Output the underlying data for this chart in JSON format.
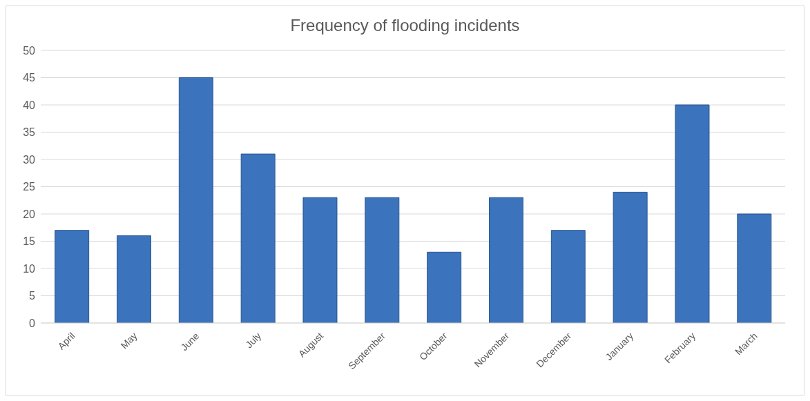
{
  "chart_data": {
    "type": "bar",
    "title": "Frequency of flooding incidents",
    "categories": [
      "April",
      "May",
      "June",
      "July",
      "August",
      "September",
      "October",
      "November",
      "December",
      "January",
      "February",
      "March"
    ],
    "values": [
      17,
      16,
      45,
      31,
      23,
      23,
      13,
      23,
      17,
      24,
      40,
      20
    ],
    "color": "#3c73bd",
    "ylim": [
      0,
      50
    ],
    "yticks": [
      0,
      5,
      10,
      15,
      20,
      25,
      30,
      35,
      40,
      45,
      50
    ],
    "grid": "y",
    "legend": false
  }
}
